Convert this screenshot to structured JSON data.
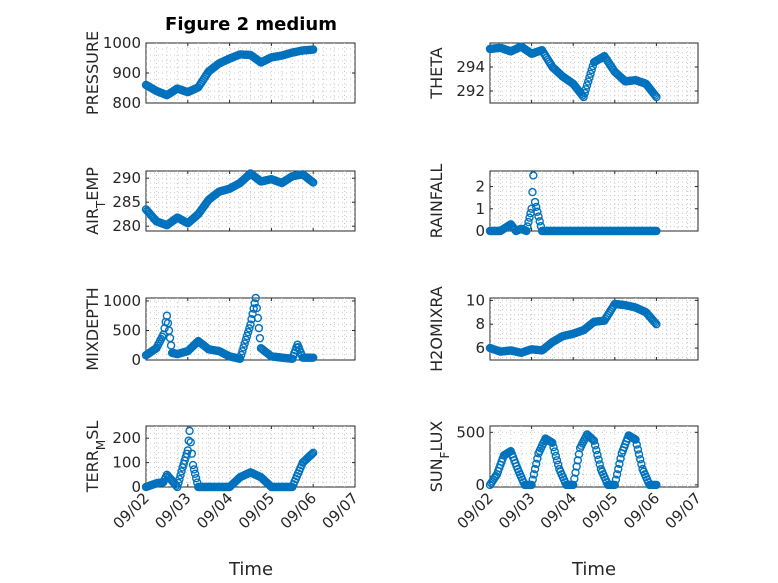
{
  "figure": {
    "title": "Figure 2 medium",
    "xlabel": "Time"
  },
  "x_ticks": [
    "09/02",
    "09/03",
    "09/04",
    "09/05",
    "09/06",
    "09/07"
  ],
  "marker_color": "#0072BD",
  "chart_data": [
    {
      "type": "scatter",
      "ylabel": "PRESSURE",
      "ylabel_sub": "",
      "ylim": [
        800,
        1000
      ],
      "yticks": [
        "800",
        "900",
        "1000"
      ],
      "x": [
        "09/02 00:00",
        "09/02 06:00",
        "09/02 12:00",
        "09/02 18:00",
        "09/03 00:00",
        "09/03 06:00",
        "09/03 12:00",
        "09/03 18:00",
        "09/04 00:00",
        "09/04 06:00",
        "09/04 12:00",
        "09/04 18:00",
        "09/05 00:00",
        "09/05 06:00",
        "09/05 12:00",
        "09/05 18:00",
        "09/06 00:00"
      ],
      "y": [
        860,
        840,
        826,
        848,
        836,
        852,
        905,
        932,
        948,
        962,
        960,
        935,
        952,
        958,
        968,
        975,
        978
      ]
    },
    {
      "type": "scatter",
      "ylabel": "THETA",
      "ylabel_sub": "",
      "ylim": [
        291,
        296
      ],
      "yticks": [
        "292",
        "294"
      ],
      "x": [
        "09/02 00:00",
        "09/02 06:00",
        "09/02 12:00",
        "09/02 18:00",
        "09/03 00:00",
        "09/03 06:00",
        "09/03 12:00",
        "09/03 18:00",
        "09/04 00:00",
        "09/04 06:00",
        "09/04 12:00",
        "09/04 18:00",
        "09/05 00:00",
        "09/05 06:00",
        "09/05 12:00",
        "09/05 18:00",
        "09/06 00:00"
      ],
      "y": [
        295.5,
        295.6,
        295.3,
        295.7,
        295.1,
        295.4,
        294.0,
        293.2,
        292.6,
        291.5,
        294.4,
        294.9,
        293.6,
        292.8,
        292.9,
        292.6,
        291.5
      ]
    },
    {
      "type": "scatter",
      "ylabel": "AIR",
      "ylabel_sub": "T",
      "ylabel_suffix": "EMP",
      "ylim": [
        279,
        291.5
      ],
      "yticks": [
        "280",
        "285",
        "290"
      ],
      "x": [
        "09/02 00:00",
        "09/02 06:00",
        "09/02 12:00",
        "09/02 18:00",
        "09/03 00:00",
        "09/03 06:00",
        "09/03 12:00",
        "09/03 18:00",
        "09/04 00:00",
        "09/04 06:00",
        "09/04 12:00",
        "09/04 18:00",
        "09/05 00:00",
        "09/05 06:00",
        "09/05 12:00",
        "09/05 18:00",
        "09/06 00:00"
      ],
      "y": [
        283.5,
        281.0,
        280.2,
        281.8,
        280.6,
        282.5,
        285.5,
        287.2,
        287.8,
        289.0,
        291.0,
        289.3,
        289.8,
        289.0,
        290.4,
        290.8,
        289.1
      ]
    },
    {
      "type": "scatter",
      "ylabel": "RAINFALL",
      "ylabel_sub": "",
      "ylim": [
        0,
        2.7
      ],
      "yticks": [
        "0",
        "1",
        "2"
      ],
      "x": [
        "09/02 00:00",
        "09/02 06:00",
        "09/02 12:00",
        "09/02 15:00",
        "09/02 18:00",
        "09/02 21:00",
        "09/03 00:00",
        "09/03 01:00",
        "09/03 02:00",
        "09/03 06:00",
        "09/03 12:00",
        "09/04 00:00",
        "09/04 12:00",
        "09/05 00:00",
        "09/05 12:00",
        "09/06 00:00"
      ],
      "y": [
        0,
        0,
        0.3,
        0,
        0.1,
        0,
        1.0,
        2.5,
        1.3,
        0,
        0,
        0,
        0,
        0,
        0,
        0
      ]
    },
    {
      "type": "scatter",
      "ylabel": "MIXDEPTH",
      "ylabel_sub": "",
      "ylim": [
        0,
        1050
      ],
      "yticks": [
        "0",
        "500",
        "1000"
      ],
      "x": [
        "09/02 00:00",
        "09/02 06:00",
        "09/02 10:00",
        "09/02 12:00",
        "09/02 15:00",
        "09/02 18:00",
        "09/03 00:00",
        "09/03 06:00",
        "09/03 12:00",
        "09/03 18:00",
        "09/04 00:00",
        "09/04 06:00",
        "09/04 12:00",
        "09/04 15:00",
        "09/04 18:00",
        "09/05 00:00",
        "09/05 06:00",
        "09/05 12:00",
        "09/05 15:00",
        "09/05 18:00",
        "09/06 00:00"
      ],
      "y": [
        80,
        200,
        430,
        750,
        120,
        100,
        150,
        320,
        180,
        150,
        60,
        20,
        600,
        1050,
        200,
        60,
        40,
        20,
        260,
        40,
        40
      ]
    },
    {
      "type": "scatter",
      "ylabel": "H2OMIXRA",
      "ylabel_sub": "",
      "ylim": [
        5,
        10.2
      ],
      "yticks": [
        "6",
        "8",
        "10"
      ],
      "x": [
        "09/02 00:00",
        "09/02 06:00",
        "09/02 12:00",
        "09/02 18:00",
        "09/03 00:00",
        "09/03 06:00",
        "09/03 12:00",
        "09/03 18:00",
        "09/04 00:00",
        "09/04 06:00",
        "09/04 12:00",
        "09/04 18:00",
        "09/05 00:00",
        "09/05 06:00",
        "09/05 12:00",
        "09/05 18:00",
        "09/06 00:00"
      ],
      "y": [
        6.0,
        5.7,
        5.8,
        5.6,
        5.9,
        5.8,
        6.5,
        7.0,
        7.2,
        7.5,
        8.2,
        8.3,
        9.7,
        9.6,
        9.4,
        9.0,
        8.0
      ]
    },
    {
      "type": "scatter",
      "ylabel": "TERR",
      "ylabel_sub": "M",
      "ylabel_suffix": "SL",
      "ylim": [
        0,
        250
      ],
      "yticks": [
        "0",
        "100",
        "200"
      ],
      "x": [
        "09/02 00:00",
        "09/02 06:00",
        "09/02 10:00",
        "09/02 12:00",
        "09/02 18:00",
        "09/02 21:00",
        "09/03 00:00",
        "09/03 01:00",
        "09/03 03:00",
        "09/03 06:00",
        "09/03 12:00",
        "09/04 00:00",
        "09/04 06:00",
        "09/04 12:00",
        "09/04 18:00",
        "09/05 00:00",
        "09/05 06:00",
        "09/05 12:00",
        "09/05 18:00",
        "09/06 00:00"
      ],
      "y": [
        0,
        15,
        20,
        50,
        0,
        80,
        150,
        230,
        90,
        0,
        0,
        0,
        40,
        60,
        40,
        0,
        0,
        0,
        100,
        140
      ]
    },
    {
      "type": "scatter",
      "ylabel": "SUN",
      "ylabel_sub": "F",
      "ylabel_suffix": "LUX",
      "ylim": [
        -20,
        560
      ],
      "yticks": [
        "0",
        "500"
      ],
      "x": [
        "09/02 00:00",
        "09/02 04:00",
        "09/02 08:00",
        "09/02 12:00",
        "09/02 16:00",
        "09/02 20:00",
        "09/03 00:00",
        "09/03 04:00",
        "09/03 08:00",
        "09/03 12:00",
        "09/03 16:00",
        "09/03 20:00",
        "09/04 00:00",
        "09/04 04:00",
        "09/04 08:00",
        "09/04 12:00",
        "09/04 16:00",
        "09/04 20:00",
        "09/05 00:00",
        "09/05 04:00",
        "09/05 08:00",
        "09/05 12:00",
        "09/05 16:00",
        "09/05 20:00",
        "09/06 00:00"
      ],
      "y": [
        0,
        100,
        280,
        320,
        150,
        0,
        0,
        300,
        440,
        400,
        150,
        0,
        0,
        350,
        480,
        420,
        150,
        0,
        0,
        300,
        470,
        430,
        150,
        0,
        0
      ]
    }
  ]
}
